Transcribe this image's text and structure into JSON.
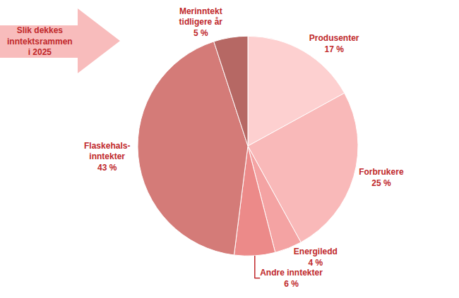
{
  "chart_data": {
    "type": "pie",
    "title": "Slik dekkes\ninntektsrammen\ni 2025",
    "categories": [
      "Produsenter",
      "Forbrukere",
      "Energiledd",
      "Andre inntekter",
      "Flaskehals-\ninntekter",
      "Merinntekt\ntidligere år"
    ],
    "values": [
      17,
      25,
      4,
      6,
      43,
      5
    ],
    "value_labels": [
      "17 %",
      "25 %",
      "4 %",
      "6 %",
      "43 %",
      "5 %"
    ],
    "colors": [
      "#fdd0d0",
      "#f9b9b9",
      "#f4a3a3",
      "#ec8a89",
      "#d47b78",
      "#b66864"
    ],
    "data_labels": true
  }
}
